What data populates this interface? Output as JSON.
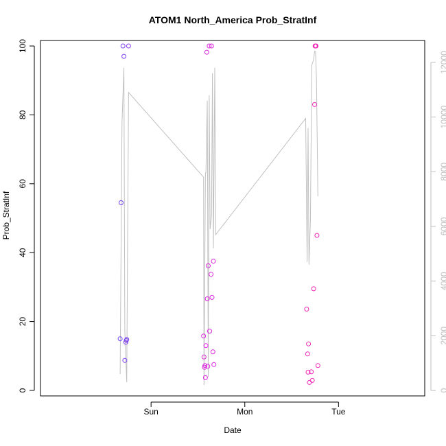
{
  "chart_data": {
    "type": "scatter",
    "title": "ATOM1 North_America Prob_StratInf",
    "xlabel": "Date",
    "ylabel": "Prob_StratInf",
    "xlim": [
      -1.18,
      2.92
    ],
    "ylim": [
      -1.6,
      101.6
    ],
    "y_ticks": [
      0,
      20,
      40,
      60,
      80,
      100
    ],
    "x_ticks": [
      {
        "value": 0,
        "label": "Sun"
      },
      {
        "value": 1,
        "label": "Mon"
      },
      {
        "value": 2,
        "label": "Tue"
      }
    ],
    "y2lim": [
      -200,
      12800
    ],
    "y2_ticks": [
      0,
      2000,
      4000,
      6000,
      8000,
      10000,
      12000
    ],
    "colors": {
      "axis": "#000000",
      "secondary_axis": "#bebebe",
      "line": "#c0c0c0"
    },
    "series": [
      {
        "name": "points",
        "marker": "open-circle",
        "points": [
          {
            "x": -0.33,
            "y": 15.0,
            "color": "#6a3ef0"
          },
          {
            "x": -0.32,
            "y": 54.5,
            "color": "#6a3ef0"
          },
          {
            "x": -0.3,
            "y": 100.0,
            "color": "#7a3ef0"
          },
          {
            "x": -0.29,
            "y": 97.0,
            "color": "#7a3ef0"
          },
          {
            "x": -0.28,
            "y": 8.7,
            "color": "#7a3ef0"
          },
          {
            "x": -0.27,
            "y": 14.0,
            "color": "#7a3ef0"
          },
          {
            "x": -0.265,
            "y": 14.5,
            "color": "#7a3ef0"
          },
          {
            "x": -0.26,
            "y": 14.8,
            "color": "#7a3ef0"
          },
          {
            "x": -0.24,
            "y": 100.0,
            "color": "#8a3ef0"
          },
          {
            "x": 0.56,
            "y": 15.8,
            "color": "#dd22e0"
          },
          {
            "x": 0.565,
            "y": 9.7,
            "color": "#dd22e0"
          },
          {
            "x": 0.57,
            "y": 6.7,
            "color": "#dd22e0"
          },
          {
            "x": 0.575,
            "y": 7.2,
            "color": "#dd22e0"
          },
          {
            "x": 0.58,
            "y": 3.7,
            "color": "#dd22e0"
          },
          {
            "x": 0.585,
            "y": 13.0,
            "color": "#dd22e0"
          },
          {
            "x": 0.595,
            "y": 98.2,
            "color": "#dd22e0"
          },
          {
            "x": 0.6,
            "y": 26.6,
            "color": "#dd22e0"
          },
          {
            "x": 0.605,
            "y": 7.0,
            "color": "#dd22e0"
          },
          {
            "x": 0.61,
            "y": 36.2,
            "color": "#dd22e0"
          },
          {
            "x": 0.62,
            "y": 100.0,
            "color": "#dd22e0"
          },
          {
            "x": 0.625,
            "y": 17.2,
            "color": "#dd22e0"
          },
          {
            "x": 0.64,
            "y": 33.7,
            "color": "#dd22e0"
          },
          {
            "x": 0.645,
            "y": 100.0,
            "color": "#dd22e0"
          },
          {
            "x": 0.65,
            "y": 27.0,
            "color": "#dd22e0"
          },
          {
            "x": 0.66,
            "y": 11.2,
            "color": "#dd22e0"
          },
          {
            "x": 0.665,
            "y": 37.5,
            "color": "#dd22e0"
          },
          {
            "x": 0.67,
            "y": 7.5,
            "color": "#dd22e0"
          },
          {
            "x": 1.66,
            "y": 23.6,
            "color": "#f028b8"
          },
          {
            "x": 1.67,
            "y": 10.6,
            "color": "#f028b8"
          },
          {
            "x": 1.675,
            "y": 5.3,
            "color": "#f028b8"
          },
          {
            "x": 1.68,
            "y": 13.5,
            "color": "#f028b8"
          },
          {
            "x": 1.69,
            "y": 2.3,
            "color": "#f028b8"
          },
          {
            "x": 1.71,
            "y": 5.4,
            "color": "#f028b8"
          },
          {
            "x": 1.72,
            "y": 2.9,
            "color": "#f028b8"
          },
          {
            "x": 1.735,
            "y": 29.5,
            "color": "#f028b8"
          },
          {
            "x": 1.745,
            "y": 83.0,
            "color": "#f028b8"
          },
          {
            "x": 1.75,
            "y": 100.0,
            "color": "#f028b8"
          },
          {
            "x": 1.755,
            "y": 100.0,
            "color": "#f028b8"
          },
          {
            "x": 1.76,
            "y": 100.0,
            "color": "#f028b8"
          },
          {
            "x": 1.77,
            "y": 45.0,
            "color": "#f028b8"
          },
          {
            "x": 1.78,
            "y": 7.2,
            "color": "#f028b8"
          }
        ]
      },
      {
        "name": "secondary-line",
        "axis": "right",
        "points": [
          {
            "x": -0.33,
            "y2": 600
          },
          {
            "x": -0.31,
            "y2": 9800
          },
          {
            "x": -0.29,
            "y2": 11800
          },
          {
            "x": -0.28,
            "y2": 2200
          },
          {
            "x": -0.26,
            "y2": 300
          },
          {
            "x": -0.24,
            "y2": 10900
          },
          {
            "x": 0.56,
            "y2": 7800
          },
          {
            "x": 0.565,
            "y2": 200
          },
          {
            "x": 0.58,
            "y2": 7950
          },
          {
            "x": 0.585,
            "y2": 7950
          },
          {
            "x": 0.6,
            "y2": 10600
          },
          {
            "x": 0.61,
            "y2": 500
          },
          {
            "x": 0.62,
            "y2": 10800
          },
          {
            "x": 0.63,
            "y2": 5900
          },
          {
            "x": 0.645,
            "y2": 6400
          },
          {
            "x": 0.655,
            "y2": 11600
          },
          {
            "x": 0.665,
            "y2": 5200
          },
          {
            "x": 0.68,
            "y2": 11800
          },
          {
            "x": 0.69,
            "y2": 5700
          },
          {
            "x": 1.65,
            "y2": 9950
          },
          {
            "x": 1.665,
            "y2": 4700
          },
          {
            "x": 1.675,
            "y2": 9600
          },
          {
            "x": 1.685,
            "y2": 4600
          },
          {
            "x": 1.7,
            "y2": 6200
          },
          {
            "x": 1.715,
            "y2": 11900
          },
          {
            "x": 1.735,
            "y2": 12100
          },
          {
            "x": 1.745,
            "y2": 12400
          },
          {
            "x": 1.755,
            "y2": 12400
          },
          {
            "x": 1.765,
            "y2": 11400
          },
          {
            "x": 1.78,
            "y2": 7100
          }
        ]
      }
    ]
  }
}
